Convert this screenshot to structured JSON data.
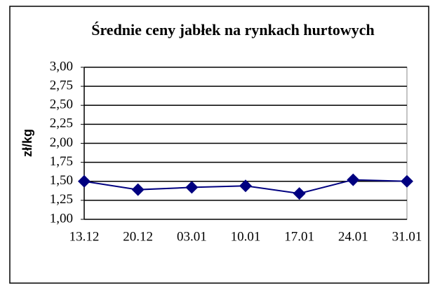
{
  "chart_data": {
    "type": "line",
    "title": "Średnie ceny jabłek na rynkach hurtowych",
    "y_label": "zł/kg",
    "categories": [
      "13.12",
      "20.12",
      "03.01",
      "10.01",
      "17.01",
      "24.01",
      "31.01"
    ],
    "series": [
      {
        "name": null,
        "color": "#000080",
        "values": [
          1.5,
          1.39,
          1.42,
          1.44,
          1.34,
          1.52,
          1.5
        ]
      }
    ],
    "ylim": [
      1.0,
      3.0
    ],
    "yticks": [
      {
        "value": 1.0,
        "label": "1,00"
      },
      {
        "value": 1.25,
        "label": "1,25"
      },
      {
        "value": 1.5,
        "label": "1,50"
      },
      {
        "value": 1.75,
        "label": "1,75"
      },
      {
        "value": 2.0,
        "label": "2,00"
      },
      {
        "value": 2.25,
        "label": "2,25"
      },
      {
        "value": 2.5,
        "label": "2,50"
      },
      {
        "value": 2.75,
        "label": "2,75"
      },
      {
        "value": 3.0,
        "label": "3,00"
      }
    ],
    "grid": true
  }
}
